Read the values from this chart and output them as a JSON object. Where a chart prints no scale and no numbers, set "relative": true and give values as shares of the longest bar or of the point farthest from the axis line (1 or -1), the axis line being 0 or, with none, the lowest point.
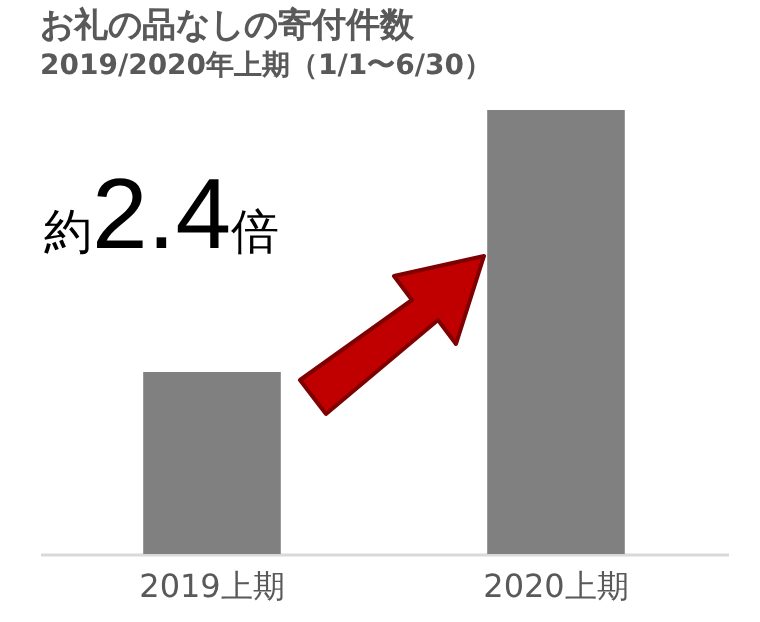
{
  "chart_data": {
    "type": "bar",
    "title": "お礼の品なしの寄付件数",
    "subtitle": "2019/2020年上期（1/1〜6/30）",
    "categories": [
      "2019上期",
      "2020上期"
    ],
    "values": [
      0.41,
      1
    ],
    "color": "#808080",
    "relative": true,
    "annotations": [
      "約2.4倍"
    ]
  }
}
